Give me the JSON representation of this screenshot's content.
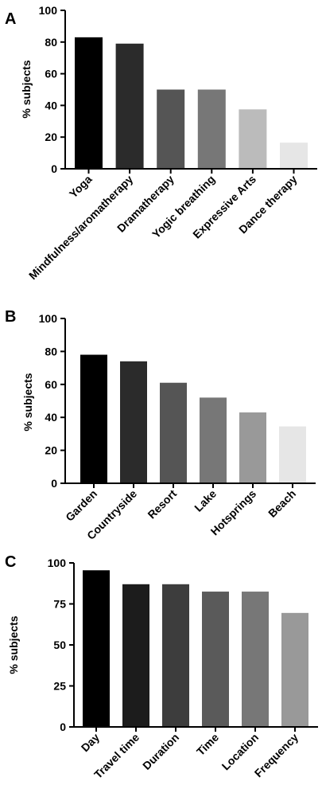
{
  "chart_data": [
    {
      "panel_label": "A",
      "type": "bar",
      "categories": [
        "Yoga",
        "Mindfulness/aromatherapy",
        "Dramatherapy",
        "Yogic breathing",
        "Expressive Arts",
        "Dance therapy"
      ],
      "values": [
        83,
        79,
        50,
        50,
        37.5,
        16.5
      ],
      "ylabel": "% subjects",
      "ylim": [
        0,
        100
      ],
      "yticks": [
        "0",
        "20",
        "40",
        "60",
        "80",
        "100"
      ],
      "bar_colors": [
        "#000000",
        "#2b2b2b",
        "#555555",
        "#777777",
        "#bbbbbb",
        "#e6e6e6"
      ],
      "grid": false
    },
    {
      "panel_label": "B",
      "type": "bar",
      "categories": [
        "Garden",
        "Countryside",
        "Resort",
        "Lake",
        "Hotsprings",
        "Beach"
      ],
      "values": [
        78,
        74,
        61,
        52,
        43,
        34.5
      ],
      "ylabel": "% subjects",
      "ylim": [
        0,
        100
      ],
      "yticks": [
        "0",
        "20",
        "40",
        "60",
        "80",
        "100"
      ],
      "bar_colors": [
        "#000000",
        "#2b2b2b",
        "#555555",
        "#777777",
        "#999999",
        "#e6e6e6"
      ],
      "grid": false
    },
    {
      "panel_label": "C",
      "type": "bar",
      "categories": [
        "Day",
        "Travel time",
        "Duration",
        "Time",
        "Location",
        "Frequency"
      ],
      "values": [
        95.5,
        87,
        87,
        82.5,
        82.5,
        69.5
      ],
      "ylabel": "% subjects",
      "ylim": [
        0,
        100
      ],
      "yticks": [
        "0",
        "25",
        "50",
        "75",
        "100"
      ],
      "bar_colors": [
        "#000000",
        "#1c1c1c",
        "#3d3d3d",
        "#5a5a5a",
        "#777777",
        "#999999"
      ],
      "grid": false
    }
  ]
}
